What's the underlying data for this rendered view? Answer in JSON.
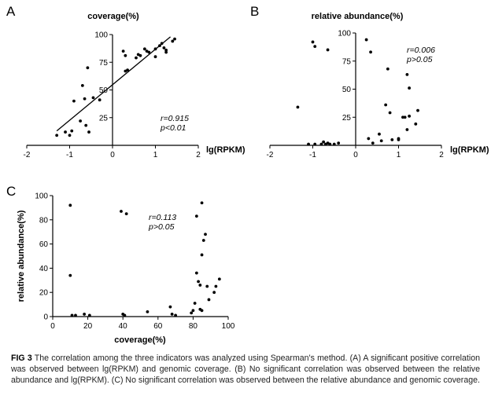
{
  "chart_data": [
    {
      "type": "scatter",
      "panel": "A",
      "title": "coverage(%)",
      "xlabel": "lg(RPKM)",
      "ylabel": "coverage(%)",
      "xlim": [
        -2,
        2
      ],
      "ylim": [
        0,
        100
      ],
      "x_ticks": [
        "-2",
        "-1",
        "0",
        "1",
        "2"
      ],
      "y_ticks": [
        "25",
        "50",
        "75",
        "100"
      ],
      "annotation": [
        "r=0.915",
        "p<0.01"
      ],
      "fit_line": {
        "x": [
          -1.3,
          1.35
        ],
        "y": [
          13,
          98
        ]
      },
      "points": [
        {
          "x": -1.3,
          "y": 9
        },
        {
          "x": -1.1,
          "y": 12
        },
        {
          "x": -1.0,
          "y": 9
        },
        {
          "x": -0.95,
          "y": 13
        },
        {
          "x": -0.9,
          "y": 40
        },
        {
          "x": -0.75,
          "y": 22
        },
        {
          "x": -0.7,
          "y": 54
        },
        {
          "x": -0.65,
          "y": 42
        },
        {
          "x": -0.62,
          "y": 18
        },
        {
          "x": -0.58,
          "y": 70
        },
        {
          "x": -0.55,
          "y": 12
        },
        {
          "x": -0.45,
          "y": 43
        },
        {
          "x": -0.3,
          "y": 41
        },
        {
          "x": 0.25,
          "y": 85
        },
        {
          "x": 0.3,
          "y": 81
        },
        {
          "x": 0.3,
          "y": 67
        },
        {
          "x": 0.35,
          "y": 68
        },
        {
          "x": 0.55,
          "y": 79
        },
        {
          "x": 0.6,
          "y": 82
        },
        {
          "x": 0.65,
          "y": 81
        },
        {
          "x": 0.75,
          "y": 87
        },
        {
          "x": 0.8,
          "y": 85
        },
        {
          "x": 0.85,
          "y": 84
        },
        {
          "x": 1.0,
          "y": 87
        },
        {
          "x": 1.0,
          "y": 80
        },
        {
          "x": 1.1,
          "y": 90
        },
        {
          "x": 1.15,
          "y": 92
        },
        {
          "x": 1.2,
          "y": 88
        },
        {
          "x": 1.25,
          "y": 86
        },
        {
          "x": 1.25,
          "y": 84
        },
        {
          "x": 1.4,
          "y": 94
        },
        {
          "x": 1.45,
          "y": 96
        }
      ]
    },
    {
      "type": "scatter",
      "panel": "B",
      "title": "relative abundance(%)",
      "xlabel": "lg(RPKM)",
      "ylabel": "relative abundance(%)",
      "xlim": [
        -2,
        2
      ],
      "ylim": [
        0,
        100
      ],
      "x_ticks": [
        "-2",
        "-1",
        "0",
        "1",
        "2"
      ],
      "y_ticks": [
        "25",
        "50",
        "75",
        "100"
      ],
      "annotation": [
        "r=0.006",
        "p>0.05"
      ],
      "points": [
        {
          "x": -1.35,
          "y": 34
        },
        {
          "x": -1.1,
          "y": 1
        },
        {
          "x": -1.0,
          "y": 92
        },
        {
          "x": -0.95,
          "y": 88
        },
        {
          "x": -0.95,
          "y": 1
        },
        {
          "x": -0.8,
          "y": 1
        },
        {
          "x": -0.75,
          "y": 3
        },
        {
          "x": -0.7,
          "y": 1
        },
        {
          "x": -0.65,
          "y": 85
        },
        {
          "x": -0.65,
          "y": 2
        },
        {
          "x": -0.6,
          "y": 1
        },
        {
          "x": -0.5,
          "y": 1
        },
        {
          "x": -0.4,
          "y": 2
        },
        {
          "x": 0.25,
          "y": 94
        },
        {
          "x": 0.3,
          "y": 6
        },
        {
          "x": 0.35,
          "y": 83
        },
        {
          "x": 0.4,
          "y": 2
        },
        {
          "x": 0.55,
          "y": 10
        },
        {
          "x": 0.6,
          "y": 4
        },
        {
          "x": 0.7,
          "y": 36
        },
        {
          "x": 0.75,
          "y": 68
        },
        {
          "x": 0.8,
          "y": 29
        },
        {
          "x": 0.85,
          "y": 5
        },
        {
          "x": 1.0,
          "y": 5
        },
        {
          "x": 1.0,
          "y": 6
        },
        {
          "x": 1.1,
          "y": 25
        },
        {
          "x": 1.15,
          "y": 25
        },
        {
          "x": 1.2,
          "y": 63
        },
        {
          "x": 1.2,
          "y": 14
        },
        {
          "x": 1.25,
          "y": 51
        },
        {
          "x": 1.25,
          "y": 26
        },
        {
          "x": 1.4,
          "y": 19
        },
        {
          "x": 1.45,
          "y": 31
        }
      ]
    },
    {
      "type": "scatter",
      "panel": "C",
      "title": "",
      "xlabel": "coverage(%)",
      "ylabel": "relative abundance(%)",
      "xlim": [
        0,
        100
      ],
      "ylim": [
        0,
        100
      ],
      "x_ticks": [
        "0",
        "20",
        "40",
        "60",
        "80",
        "100"
      ],
      "y_ticks": [
        "0",
        "20",
        "40",
        "60",
        "80",
        "100"
      ],
      "annotation": [
        "r=0.113",
        "p>0.05"
      ],
      "points": [
        {
          "x": 10,
          "y": 92
        },
        {
          "x": 10,
          "y": 34
        },
        {
          "x": 11,
          "y": 1
        },
        {
          "x": 13,
          "y": 1
        },
        {
          "x": 18,
          "y": 2
        },
        {
          "x": 21,
          "y": 1
        },
        {
          "x": 39,
          "y": 87
        },
        {
          "x": 40,
          "y": 2
        },
        {
          "x": 41,
          "y": 1
        },
        {
          "x": 42,
          "y": 85
        },
        {
          "x": 54,
          "y": 4
        },
        {
          "x": 67,
          "y": 8
        },
        {
          "x": 68,
          "y": 2
        },
        {
          "x": 70,
          "y": 1
        },
        {
          "x": 79,
          "y": 3
        },
        {
          "x": 80,
          "y": 5
        },
        {
          "x": 81,
          "y": 11
        },
        {
          "x": 82,
          "y": 36
        },
        {
          "x": 82,
          "y": 83
        },
        {
          "x": 83,
          "y": 29
        },
        {
          "x": 84,
          "y": 26
        },
        {
          "x": 84,
          "y": 6
        },
        {
          "x": 85,
          "y": 5
        },
        {
          "x": 85,
          "y": 94
        },
        {
          "x": 85,
          "y": 51
        },
        {
          "x": 86,
          "y": 63
        },
        {
          "x": 87,
          "y": 68
        },
        {
          "x": 88,
          "y": 25
        },
        {
          "x": 89,
          "y": 14
        },
        {
          "x": 92,
          "y": 20
        },
        {
          "x": 93,
          "y": 25
        },
        {
          "x": 95,
          "y": 31
        }
      ]
    }
  ],
  "caption": {
    "label": "FIG 3",
    "text": " The correlation among the three indicators was analyzed using Spearman's method. (A) A significant positive correlation was observed between lg(RPKM) and genomic coverage. (B) No significant correlation was observed between the relative abundance and lg(RPKM). (C) No significant correlation was observed between the relative abundance and genomic coverage."
  }
}
